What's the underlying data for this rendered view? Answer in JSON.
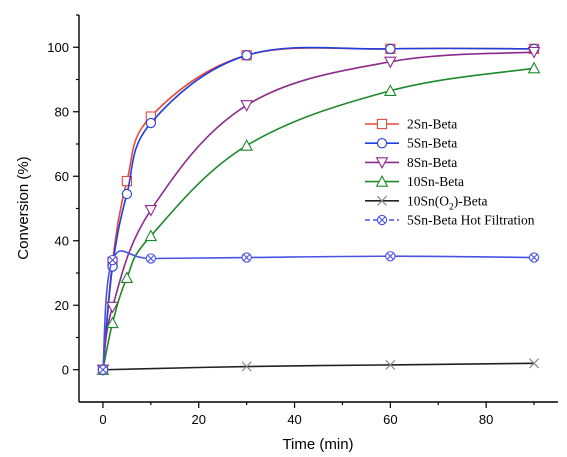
{
  "chart_data": {
    "type": "line",
    "title": "",
    "xlabel": "Time (min)",
    "ylabel": "Conversion (%)",
    "xlim": [
      -5,
      95
    ],
    "ylim": [
      -10,
      110
    ],
    "xticks": [
      0,
      20,
      40,
      60,
      80
    ],
    "yticks": [
      0,
      20,
      40,
      60,
      80,
      100
    ],
    "grid": false,
    "legend_position": "right",
    "series": [
      {
        "name": "2Sn-Beta",
        "color": "#e8473c",
        "marker": "square",
        "x": [
          0,
          2,
          5,
          10,
          30,
          60,
          90
        ],
        "y": [
          0,
          33.5,
          58.5,
          78.5,
          97.5,
          99.5,
          99.5
        ]
      },
      {
        "name": "5Sn-Beta",
        "color": "#1f3fe0",
        "marker": "circle",
        "x": [
          0,
          2,
          5,
          10,
          30,
          60,
          90
        ],
        "y": [
          0,
          32,
          54.5,
          76.5,
          97.5,
          99.5,
          99.5
        ]
      },
      {
        "name": "8Sn-Beta",
        "color": "#8e2a8e",
        "marker": "triangle-down",
        "x": [
          0,
          2,
          10,
          30,
          60,
          90
        ],
        "y": [
          0,
          19.5,
          49.5,
          82,
          95.5,
          98.5
        ]
      },
      {
        "name": "10Sn-Beta",
        "color": "#1f8a2a",
        "marker": "triangle-up",
        "x": [
          0,
          2,
          5,
          10,
          30,
          60,
          90
        ],
        "y": [
          0,
          14.5,
          28.5,
          41.5,
          69.5,
          86.5,
          93.5
        ]
      },
      {
        "name": "10Sn(O2)-Beta",
        "legend_parts": [
          "10Sn(O",
          "2",
          ")-Beta"
        ],
        "color": "#222222",
        "marker": "x",
        "x": [
          0,
          30,
          60,
          90
        ],
        "y": [
          0,
          1,
          1.5,
          2
        ]
      },
      {
        "name": "5Sn-Beta Hot Filtration",
        "color": "#4a52e6",
        "marker": "circle-x",
        "x": [
          0,
          2,
          10,
          30,
          60,
          90
        ],
        "y": [
          0,
          34,
          34.5,
          34.8,
          35.2,
          34.8
        ]
      }
    ]
  }
}
